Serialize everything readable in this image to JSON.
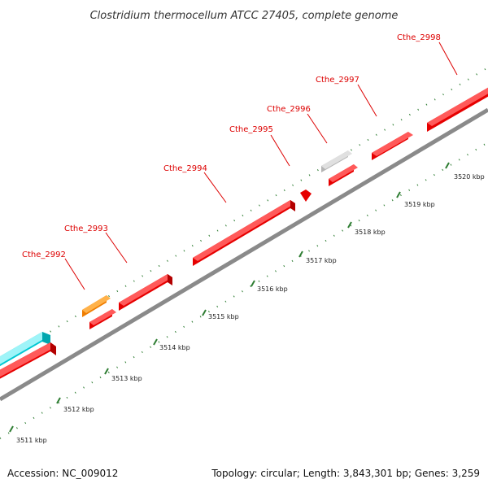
{
  "title": "Clostridium thermocellum ATCC 27405, complete genome",
  "footer": {
    "accession": "Accession: NC_009012",
    "summary": "Topology: circular; Length: 3,843,301 bp; Genes: 3,259"
  },
  "colors": {
    "cds": "#ff0000",
    "rna": "#00e5ee",
    "orange": "#ff8c00",
    "grey": "#c8c8c8",
    "backbone": "#888888",
    "tick": "#2e7d32",
    "label": "#dd0000"
  },
  "ticks": [
    {
      "label": "3511 kbp"
    },
    {
      "label": "3512 kbp"
    },
    {
      "label": "3513 kbp"
    },
    {
      "label": "3514 kbp"
    },
    {
      "label": "3515 kbp"
    },
    {
      "label": "3516 kbp"
    },
    {
      "label": "3517 kbp"
    },
    {
      "label": "3518 kbp"
    },
    {
      "label": "3519 kbp"
    },
    {
      "label": "3520 kbp"
    }
  ],
  "gene_labels": [
    {
      "label": "Cthe_2992"
    },
    {
      "label": "Cthe_2993"
    },
    {
      "label": "Cthe_2994"
    },
    {
      "label": "Cthe_2995"
    },
    {
      "label": "Cthe_2996"
    },
    {
      "label": "Cthe_2997"
    },
    {
      "label": "Cthe_2998"
    }
  ]
}
